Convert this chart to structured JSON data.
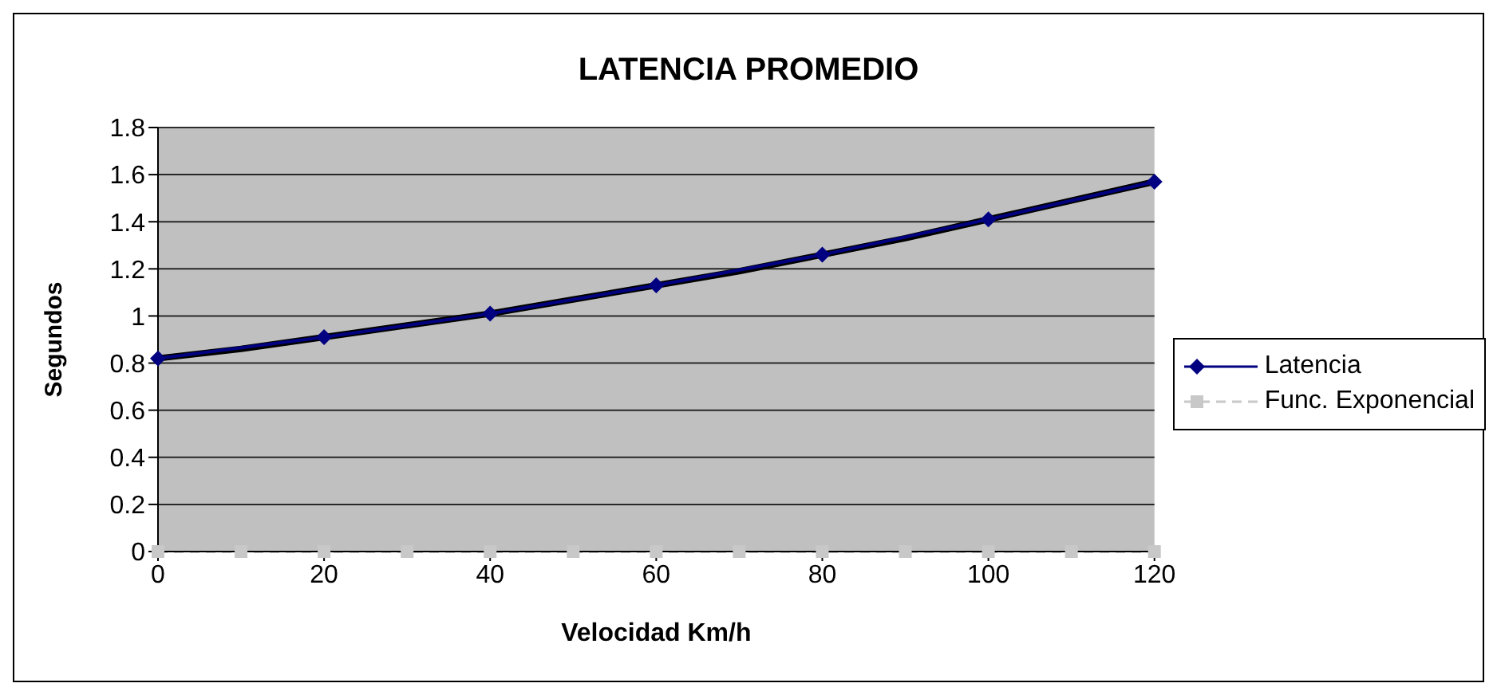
{
  "chart_data": {
    "type": "line",
    "title": "LATENCIA PROMEDIO",
    "xlabel": "Velocidad   Km/h",
    "ylabel": "Segundos",
    "xlim": [
      0,
      120
    ],
    "xticks": [
      0,
      20,
      40,
      60,
      80,
      100,
      120
    ],
    "ylim": [
      0,
      1.8
    ],
    "yticks": [
      0,
      0.2,
      0.4,
      0.6,
      0.8,
      1,
      1.2,
      1.4,
      1.6,
      1.8
    ],
    "grid": "y",
    "legend": "right",
    "series": [
      {
        "name": "Latencia",
        "color": "#000080",
        "marker": "diamond",
        "line_style": "solid",
        "x": [
          0,
          20,
          40,
          60,
          80,
          100,
          120
        ],
        "values": [
          0.82,
          0.91,
          1.01,
          1.13,
          1.26,
          1.41,
          1.57
        ]
      },
      {
        "name": "Func. Exponencial",
        "color": "#c8c8c8",
        "marker": "square",
        "line_style": "dashed",
        "x": [
          0,
          10,
          20,
          30,
          40,
          50,
          60,
          70,
          80,
          90,
          100,
          110,
          120
        ],
        "values": [
          0,
          0,
          0,
          0,
          0,
          0,
          0,
          0,
          0,
          0,
          0,
          0,
          0
        ]
      },
      {
        "color": "#000000",
        "line_style": "solid",
        "x": [
          0,
          10,
          20,
          30,
          40,
          50,
          60,
          70,
          80,
          90,
          100,
          110,
          120
        ],
        "values": [
          0.82,
          0.86,
          0.91,
          0.96,
          1.01,
          1.07,
          1.13,
          1.19,
          1.26,
          1.33,
          1.41,
          1.49,
          1.57
        ]
      }
    ]
  }
}
